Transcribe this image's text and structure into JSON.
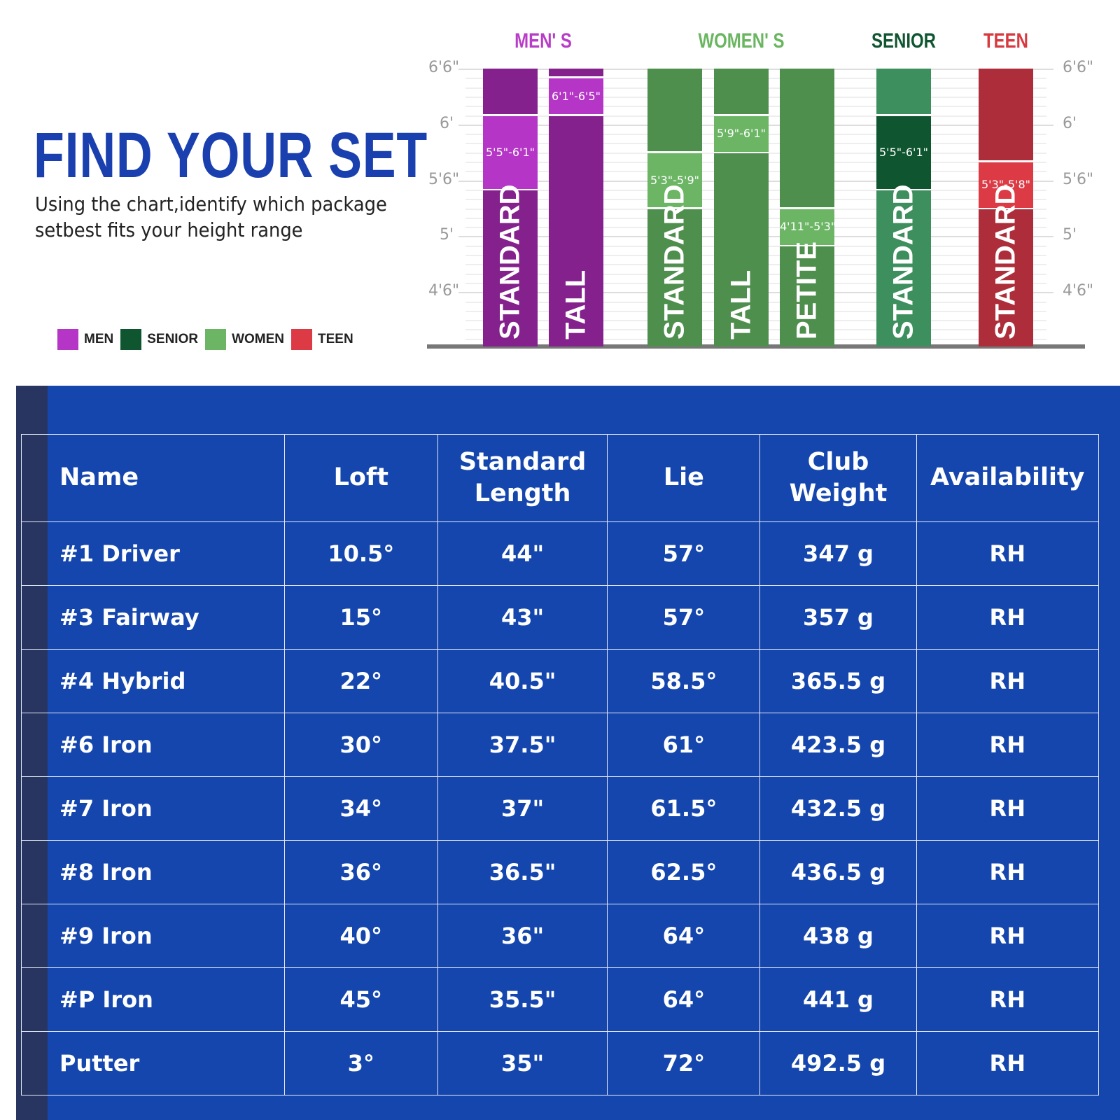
{
  "header": {
    "title": "FIND YOUR SET",
    "subtitle_lines": [
      "Using the chart,identify which package",
      "setbest fits your height range"
    ],
    "accent": "#1a3fae"
  },
  "legend": [
    {
      "label": "MEN",
      "color": "#b535c6"
    },
    {
      "label": "SENIOR",
      "color": "#0f5530"
    },
    {
      "label": "WOMEN",
      "color": "#6bb565"
    },
    {
      "label": "TEEN",
      "color": "#dc3a45"
    }
  ],
  "chart": {
    "groups": [
      {
        "label": "MEN' S",
        "color": "#b83cc8"
      },
      {
        "label": "WOMEN' S",
        "color": "#6ab660"
      },
      {
        "label": "SENIOR",
        "color": "#0f5530"
      },
      {
        "label": "TEEN",
        "color": "#d8383f"
      }
    ],
    "ticks": [
      {
        "label": "6'6\"",
        "inches": 78
      },
      {
        "label": "6'",
        "inches": 72
      },
      {
        "label": "5'6\"",
        "inches": 66
      },
      {
        "label": "5'",
        "inches": 60
      },
      {
        "label": "4'6\"",
        "inches": 54
      }
    ],
    "bars": [
      {
        "group": "MEN",
        "name": "STANDARD",
        "range_label": "5'5\"-6'1\"",
        "range_in": [
          65,
          73
        ],
        "dark": "#84218c",
        "light": "#b535c6"
      },
      {
        "group": "MEN",
        "name": "TALL",
        "range_label": "6'1\"-6'5\"",
        "range_in": [
          73,
          77
        ],
        "dark": "#84218c",
        "light": "#b535c6"
      },
      {
        "group": "WOMEN",
        "name": "STANDARD",
        "range_label": "5'3\"-5'9\"",
        "range_in": [
          63,
          69
        ],
        "dark": "#4f8f4e",
        "light": "#6bb565"
      },
      {
        "group": "WOMEN",
        "name": "TALL",
        "range_label": "5'9\"-6'1\"",
        "range_in": [
          69,
          73
        ],
        "dark": "#4f8f4e",
        "light": "#6bb565"
      },
      {
        "group": "WOMEN",
        "name": "PETITE",
        "range_label": "4'11\"-5'3\"",
        "range_in": [
          59,
          63
        ],
        "dark": "#4f8f4e",
        "light": "#6bb565"
      },
      {
        "group": "SENIOR",
        "name": "STANDARD",
        "range_label": "5'5\"-6'1\"",
        "range_in": [
          65,
          73
        ],
        "dark": "#3e8f5e",
        "light": "#0f5530"
      },
      {
        "group": "TEEN",
        "name": "STANDARD",
        "range_label": "5'3\"-5'8\"",
        "range_in": [
          63,
          68
        ],
        "dark": "#ad2e3a",
        "light": "#dc3a45"
      }
    ]
  },
  "table": {
    "headers": [
      "Name",
      "Loft",
      "Standard Length",
      "Lie",
      "Club Weight",
      "Availability"
    ],
    "rows": [
      [
        "#1 Driver",
        "10.5°",
        "44\"",
        "57°",
        "347 g",
        "RH"
      ],
      [
        "#3 Fairway",
        "15°",
        "43\"",
        "57°",
        "357 g",
        "RH"
      ],
      [
        "#4 Hybrid",
        "22°",
        "40.5\"",
        "58.5°",
        "365.5 g",
        "RH"
      ],
      [
        "#6 Iron",
        "30°",
        "37.5\"",
        "61°",
        "423.5 g",
        "RH"
      ],
      [
        "#7 Iron",
        "34°",
        "37\"",
        "61.5°",
        "432.5 g",
        "RH"
      ],
      [
        "#8 Iron",
        "36°",
        "36.5\"",
        "62.5°",
        "436.5 g",
        "RH"
      ],
      [
        "#9 Iron",
        "40°",
        "36\"",
        "64°",
        "438 g",
        "RH"
      ],
      [
        "#P Iron",
        "45°",
        "35.5\"",
        "64°",
        "441 g",
        "RH"
      ],
      [
        "Putter",
        "3°",
        "35\"",
        "72°",
        "492.5 g",
        "RH"
      ]
    ]
  }
}
